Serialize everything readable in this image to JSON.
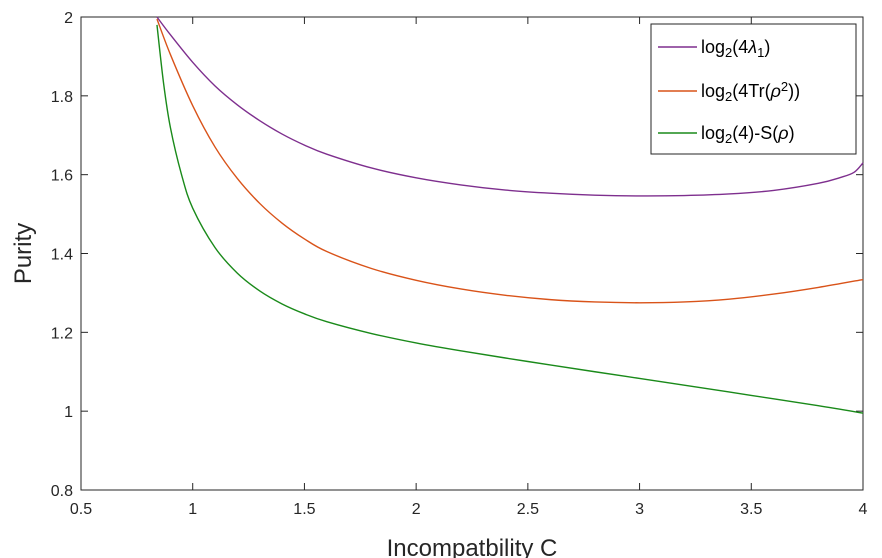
{
  "chart_data": {
    "type": "line",
    "xlabel": "Incompatbility C",
    "ylabel": "Purity",
    "xlim": [
      0.5,
      4
    ],
    "ylim": [
      0.8,
      2
    ],
    "xticks": [
      0.5,
      1,
      1.5,
      2,
      2.5,
      3,
      3.5,
      4
    ],
    "yticks": [
      0.8,
      1,
      1.2,
      1.4,
      1.6,
      1.8,
      2
    ],
    "xtick_labels": [
      "0.5",
      "1",
      "1.5",
      "2",
      "2.5",
      "3",
      "3.5",
      "4"
    ],
    "ytick_labels": [
      "0.8",
      "1",
      "1.2",
      "1.4",
      "1.6",
      "1.8",
      "2"
    ],
    "grid": false,
    "legend_position": "top-right",
    "series": [
      {
        "name": "log2(4λ1)",
        "color": "#7e2f8e",
        "legend": {
          "base": "log",
          "sub1": "2",
          "mid": "(4",
          "greek": "λ",
          "sub2": "1",
          "tail": ")"
        },
        "x": [
          0.84,
          0.9,
          1.0,
          1.1,
          1.2,
          1.3,
          1.4,
          1.5,
          1.6,
          1.8,
          2.0,
          2.2,
          2.4,
          2.6,
          2.8,
          3.0,
          3.2,
          3.4,
          3.6,
          3.8,
          3.9,
          3.96,
          4.0
        ],
        "y": [
          2.0,
          1.955,
          1.885,
          1.825,
          1.777,
          1.737,
          1.703,
          1.675,
          1.652,
          1.617,
          1.592,
          1.574,
          1.561,
          1.553,
          1.548,
          1.546,
          1.547,
          1.551,
          1.56,
          1.578,
          1.593,
          1.606,
          1.63
        ]
      },
      {
        "name": "log2(4Tr(ρ2))",
        "color": "#d95319",
        "legend": {
          "base": "log",
          "sub1": "2",
          "mid": "(4Tr(",
          "greek": "ρ",
          "sup": "2",
          "tail": "))"
        },
        "x": [
          0.84,
          0.9,
          1.0,
          1.1,
          1.2,
          1.3,
          1.4,
          1.5,
          1.6,
          1.8,
          2.0,
          2.2,
          2.4,
          2.6,
          2.8,
          3.0,
          3.2,
          3.4,
          3.6,
          3.8,
          4.0
        ],
        "y": [
          1.995,
          1.905,
          1.775,
          1.67,
          1.59,
          1.527,
          1.477,
          1.437,
          1.405,
          1.362,
          1.332,
          1.31,
          1.294,
          1.283,
          1.277,
          1.275,
          1.277,
          1.284,
          1.297,
          1.314,
          1.334
        ]
      },
      {
        "name": "log2(4)-S(ρ)",
        "color": "#1a8a1a",
        "legend": {
          "base": "log",
          "sub1": "2",
          "mid": "(4)-S(",
          "greek": "ρ",
          "tail": ")"
        },
        "x": [
          0.84,
          0.87,
          0.9,
          0.95,
          1.0,
          1.1,
          1.2,
          1.3,
          1.4,
          1.5,
          1.6,
          1.8,
          2.0,
          2.2,
          2.5,
          2.8,
          3.0,
          3.2,
          3.5,
          3.8,
          4.0
        ],
        "y": [
          1.98,
          1.83,
          1.72,
          1.6,
          1.515,
          1.415,
          1.35,
          1.305,
          1.272,
          1.247,
          1.227,
          1.197,
          1.173,
          1.153,
          1.126,
          1.1,
          1.083,
          1.066,
          1.04,
          1.014,
          0.995
        ]
      }
    ]
  }
}
